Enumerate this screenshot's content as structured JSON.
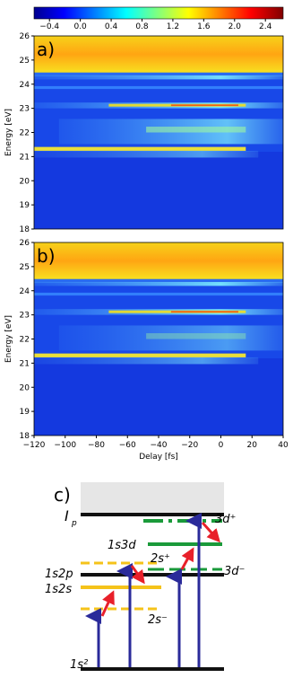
{
  "chart_data": [
    {
      "type": "heatmap",
      "panel_label": "a)",
      "ylabel": "Energy [eV]",
      "xlim": [
        -120,
        40
      ],
      "ylim": [
        18,
        26
      ],
      "yticks": [
        18,
        19,
        20,
        21,
        22,
        23,
        24,
        25,
        26
      ]
    },
    {
      "type": "heatmap",
      "panel_label": "b)",
      "ylabel": "Energy [eV]",
      "xlabel": "Delay [fs]",
      "xlim": [
        -120,
        40
      ],
      "ylim": [
        18,
        26
      ],
      "xticks": [
        {
          "value": -120,
          "label": "−120"
        },
        {
          "value": -100,
          "label": "−100"
        },
        {
          "value": -80,
          "label": "−80"
        },
        {
          "value": -60,
          "label": "−60"
        },
        {
          "value": -40,
          "label": "−40"
        },
        {
          "value": -20,
          "label": "−20"
        },
        0,
        20,
        40
      ],
      "yticks": [
        18,
        19,
        20,
        21,
        22,
        23,
        24,
        25,
        26
      ]
    }
  ],
  "colorbar": {
    "clim": [
      -0.6,
      2.63
    ],
    "ticks": [
      {
        "value": -0.4,
        "label": "−0.4"
      },
      {
        "value": 0,
        "label": "0.0"
      },
      0.4,
      0.8,
      1.2,
      1.6,
      {
        "value": 2,
        "label": "2.0"
      },
      2.4
    ]
  },
  "diagram": {
    "panel_label": "c)",
    "ip_main": "I",
    "ip_sub": "p",
    "labels": [
      "3d⁺",
      "1s3d",
      "2s⁺",
      "1s2p",
      "3d⁻",
      "1s2s",
      "2s⁻",
      "1s²"
    ]
  }
}
